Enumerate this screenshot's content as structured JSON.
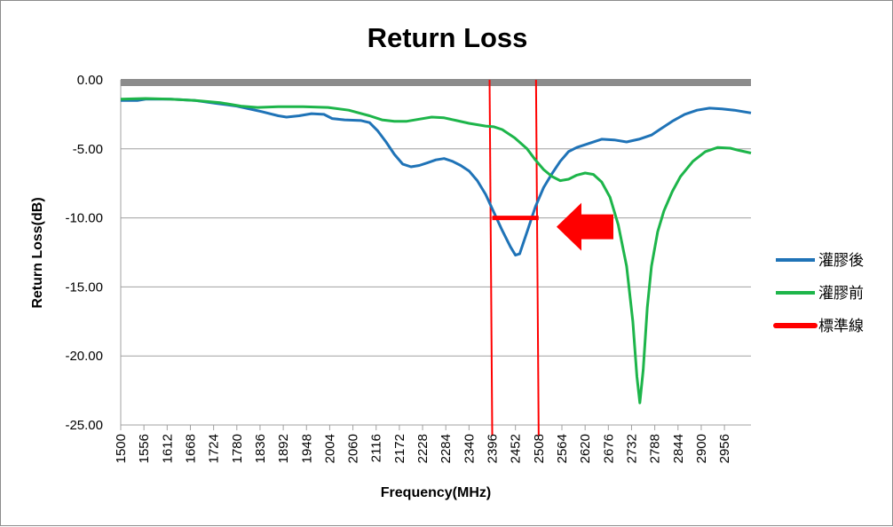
{
  "colors": {
    "after_series": "#1f73b7",
    "before_series": "#1db54a",
    "standard_line": "#ff0000",
    "top_band": "#8c8c8c",
    "gridline": "#a0a0a0"
  },
  "chart_data": {
    "type": "line",
    "title": "Return Loss",
    "xlabel": "Frequency(MHz)",
    "ylabel": "Return Loss(dB)",
    "xlim": [
      1500,
      3020
    ],
    "ylim": [
      -25,
      0
    ],
    "y_ticks": [
      "0.00",
      "-5.00",
      "-10.00",
      "-15.00",
      "-20.00",
      "-25.00"
    ],
    "y_tick_values": [
      0,
      -5,
      -10,
      -15,
      -20,
      -25
    ],
    "x_ticks": [
      "1500",
      "1556",
      "1612",
      "1668",
      "1724",
      "1780",
      "1836",
      "1892",
      "1948",
      "2004",
      "2060",
      "2116",
      "2172",
      "2228",
      "2284",
      "2340",
      "2396",
      "2452",
      "2508",
      "2564",
      "2620",
      "2676",
      "2732",
      "2788",
      "2844",
      "2900",
      "2956"
    ],
    "x_tick_values": [
      1500,
      1556,
      1612,
      1668,
      1724,
      1780,
      1836,
      1892,
      1948,
      2004,
      2060,
      2116,
      2172,
      2228,
      2284,
      2340,
      2396,
      2452,
      2508,
      2564,
      2620,
      2676,
      2732,
      2788,
      2844,
      2900,
      2956
    ],
    "grid": true,
    "legend_position": "right",
    "series": [
      {
        "name": "灌膠後",
        "color": "#1f73b7",
        "points": [
          [
            1500,
            -1.5
          ],
          [
            1540,
            -1.5
          ],
          [
            1560,
            -1.4
          ],
          [
            1620,
            -1.4
          ],
          [
            1680,
            -1.5
          ],
          [
            1730,
            -1.7
          ],
          [
            1780,
            -1.9
          ],
          [
            1840,
            -2.3
          ],
          [
            1880,
            -2.6
          ],
          [
            1900,
            -2.7
          ],
          [
            1930,
            -2.6
          ],
          [
            1960,
            -2.45
          ],
          [
            1990,
            -2.5
          ],
          [
            2010,
            -2.8
          ],
          [
            2040,
            -2.9
          ],
          [
            2080,
            -2.95
          ],
          [
            2100,
            -3.1
          ],
          [
            2120,
            -3.7
          ],
          [
            2140,
            -4.5
          ],
          [
            2160,
            -5.4
          ],
          [
            2180,
            -6.1
          ],
          [
            2200,
            -6.3
          ],
          [
            2220,
            -6.2
          ],
          [
            2240,
            -6.0
          ],
          [
            2260,
            -5.8
          ],
          [
            2280,
            -5.7
          ],
          [
            2300,
            -5.9
          ],
          [
            2320,
            -6.2
          ],
          [
            2340,
            -6.6
          ],
          [
            2360,
            -7.3
          ],
          [
            2380,
            -8.3
          ],
          [
            2400,
            -9.6
          ],
          [
            2420,
            -10.9
          ],
          [
            2440,
            -12.1
          ],
          [
            2452,
            -12.7
          ],
          [
            2462,
            -12.6
          ],
          [
            2480,
            -11.0
          ],
          [
            2500,
            -9.2
          ],
          [
            2520,
            -7.8
          ],
          [
            2540,
            -6.8
          ],
          [
            2560,
            -5.9
          ],
          [
            2580,
            -5.2
          ],
          [
            2600,
            -4.9
          ],
          [
            2630,
            -4.6
          ],
          [
            2660,
            -4.3
          ],
          [
            2690,
            -4.35
          ],
          [
            2720,
            -4.5
          ],
          [
            2750,
            -4.3
          ],
          [
            2780,
            -4.0
          ],
          [
            2800,
            -3.6
          ],
          [
            2830,
            -3.0
          ],
          [
            2860,
            -2.5
          ],
          [
            2890,
            -2.2
          ],
          [
            2920,
            -2.05
          ],
          [
            2950,
            -2.1
          ],
          [
            2980,
            -2.2
          ],
          [
            3020,
            -2.4
          ]
        ]
      },
      {
        "name": "灌膠前",
        "color": "#1db54a",
        "points": [
          [
            1500,
            -1.4
          ],
          [
            1560,
            -1.35
          ],
          [
            1620,
            -1.4
          ],
          [
            1680,
            -1.5
          ],
          [
            1740,
            -1.65
          ],
          [
            1790,
            -1.9
          ],
          [
            1830,
            -2.0
          ],
          [
            1880,
            -1.95
          ],
          [
            1940,
            -1.95
          ],
          [
            2000,
            -2.0
          ],
          [
            2050,
            -2.2
          ],
          [
            2100,
            -2.6
          ],
          [
            2130,
            -2.9
          ],
          [
            2160,
            -3.0
          ],
          [
            2190,
            -3.0
          ],
          [
            2220,
            -2.85
          ],
          [
            2250,
            -2.7
          ],
          [
            2280,
            -2.75
          ],
          [
            2310,
            -2.95
          ],
          [
            2340,
            -3.15
          ],
          [
            2380,
            -3.35
          ],
          [
            2400,
            -3.4
          ],
          [
            2420,
            -3.6
          ],
          [
            2450,
            -4.2
          ],
          [
            2480,
            -5.0
          ],
          [
            2500,
            -5.8
          ],
          [
            2520,
            -6.5
          ],
          [
            2540,
            -7.0
          ],
          [
            2560,
            -7.3
          ],
          [
            2580,
            -7.2
          ],
          [
            2600,
            -6.9
          ],
          [
            2620,
            -6.75
          ],
          [
            2640,
            -6.85
          ],
          [
            2660,
            -7.4
          ],
          [
            2680,
            -8.5
          ],
          [
            2700,
            -10.5
          ],
          [
            2720,
            -13.5
          ],
          [
            2735,
            -17.5
          ],
          [
            2745,
            -21.5
          ],
          [
            2752,
            -23.4
          ],
          [
            2760,
            -21.0
          ],
          [
            2770,
            -16.5
          ],
          [
            2780,
            -13.5
          ],
          [
            2795,
            -11.0
          ],
          [
            2810,
            -9.5
          ],
          [
            2830,
            -8.1
          ],
          [
            2850,
            -7.0
          ],
          [
            2880,
            -5.9
          ],
          [
            2910,
            -5.2
          ],
          [
            2940,
            -4.9
          ],
          [
            2970,
            -4.95
          ],
          [
            2990,
            -5.1
          ],
          [
            3020,
            -5.3
          ]
        ]
      },
      {
        "name": "標準線",
        "color": "#ff0000",
        "points": [
          [
            2396,
            -10
          ],
          [
            2508,
            -10
          ]
        ]
      }
    ],
    "reference_lines": {
      "vertical_x": [
        2396,
        2508
      ],
      "top_band_y": 0
    }
  }
}
